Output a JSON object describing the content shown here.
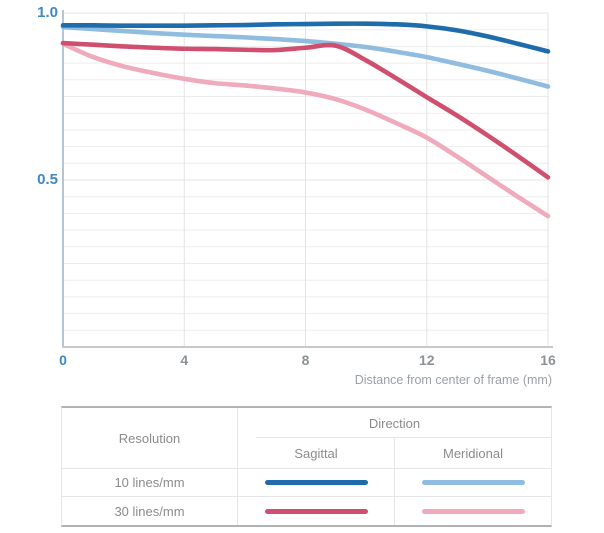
{
  "colors": {
    "sagittal_10": "#1e6cab",
    "meridional_10": "#8fbcdf",
    "sagittal_30": "#d14f6e",
    "meridional_30": "#efaabb",
    "axis_label_blue": "#3e88c5",
    "tick_gray": "#8d9296",
    "grid_minor": "#ededed",
    "grid_major": "#e3e3e3",
    "x_axis_line": "#c9c9c9",
    "y_axis_line": "#b6c5d2"
  },
  "chart_data": {
    "type": "line",
    "title": "",
    "xlabel": "Distance from center of frame (mm)",
    "ylabel": "",
    "xlim": [
      0,
      16
    ],
    "ylim": [
      0,
      1.0
    ],
    "grid": true,
    "minor_y_step": 0.05,
    "xticks": [
      0,
      4,
      8,
      12,
      16
    ],
    "xtick_labels": [
      "0",
      "4",
      "8",
      "12",
      "16"
    ],
    "ytick_values": [
      1.0,
      0.5
    ],
    "ytick_labels": [
      "1.0",
      "0.5"
    ],
    "x": [
      0,
      1,
      2,
      3,
      4,
      5,
      6,
      7,
      8,
      9,
      10,
      11,
      12,
      13,
      14,
      15,
      16
    ],
    "series": [
      {
        "name": "10 lines/mm Sagittal",
        "color": "#1e6cab",
        "values": [
          0.963,
          0.963,
          0.962,
          0.962,
          0.962,
          0.963,
          0.964,
          0.966,
          0.967,
          0.968,
          0.968,
          0.966,
          0.96,
          0.948,
          0.93,
          0.908,
          0.885
        ]
      },
      {
        "name": "10 lines/mm Meridional",
        "color": "#8fbcdf",
        "values": [
          0.958,
          0.952,
          0.946,
          0.94,
          0.935,
          0.931,
          0.927,
          0.922,
          0.916,
          0.908,
          0.898,
          0.884,
          0.868,
          0.848,
          0.827,
          0.804,
          0.78
        ]
      },
      {
        "name": "30 lines/mm Sagittal",
        "color": "#d14f6e",
        "values": [
          0.91,
          0.905,
          0.9,
          0.896,
          0.893,
          0.892,
          0.89,
          0.889,
          0.896,
          0.902,
          0.858,
          0.804,
          0.748,
          0.693,
          0.634,
          0.572,
          0.508
        ]
      },
      {
        "name": "30 lines/mm Meridional",
        "color": "#efaabb",
        "values": [
          0.908,
          0.868,
          0.84,
          0.82,
          0.803,
          0.79,
          0.783,
          0.774,
          0.762,
          0.742,
          0.71,
          0.67,
          0.627,
          0.57,
          0.51,
          0.45,
          0.392
        ]
      }
    ],
    "legend_position": "table-below"
  },
  "table": {
    "resolution_header": "Resolution",
    "direction_header": "Direction",
    "col_sagittal": "Sagittal",
    "col_meridional": "Meridional",
    "rows": [
      {
        "label": "10 lines/mm"
      },
      {
        "label": "30 lines/mm"
      }
    ]
  }
}
